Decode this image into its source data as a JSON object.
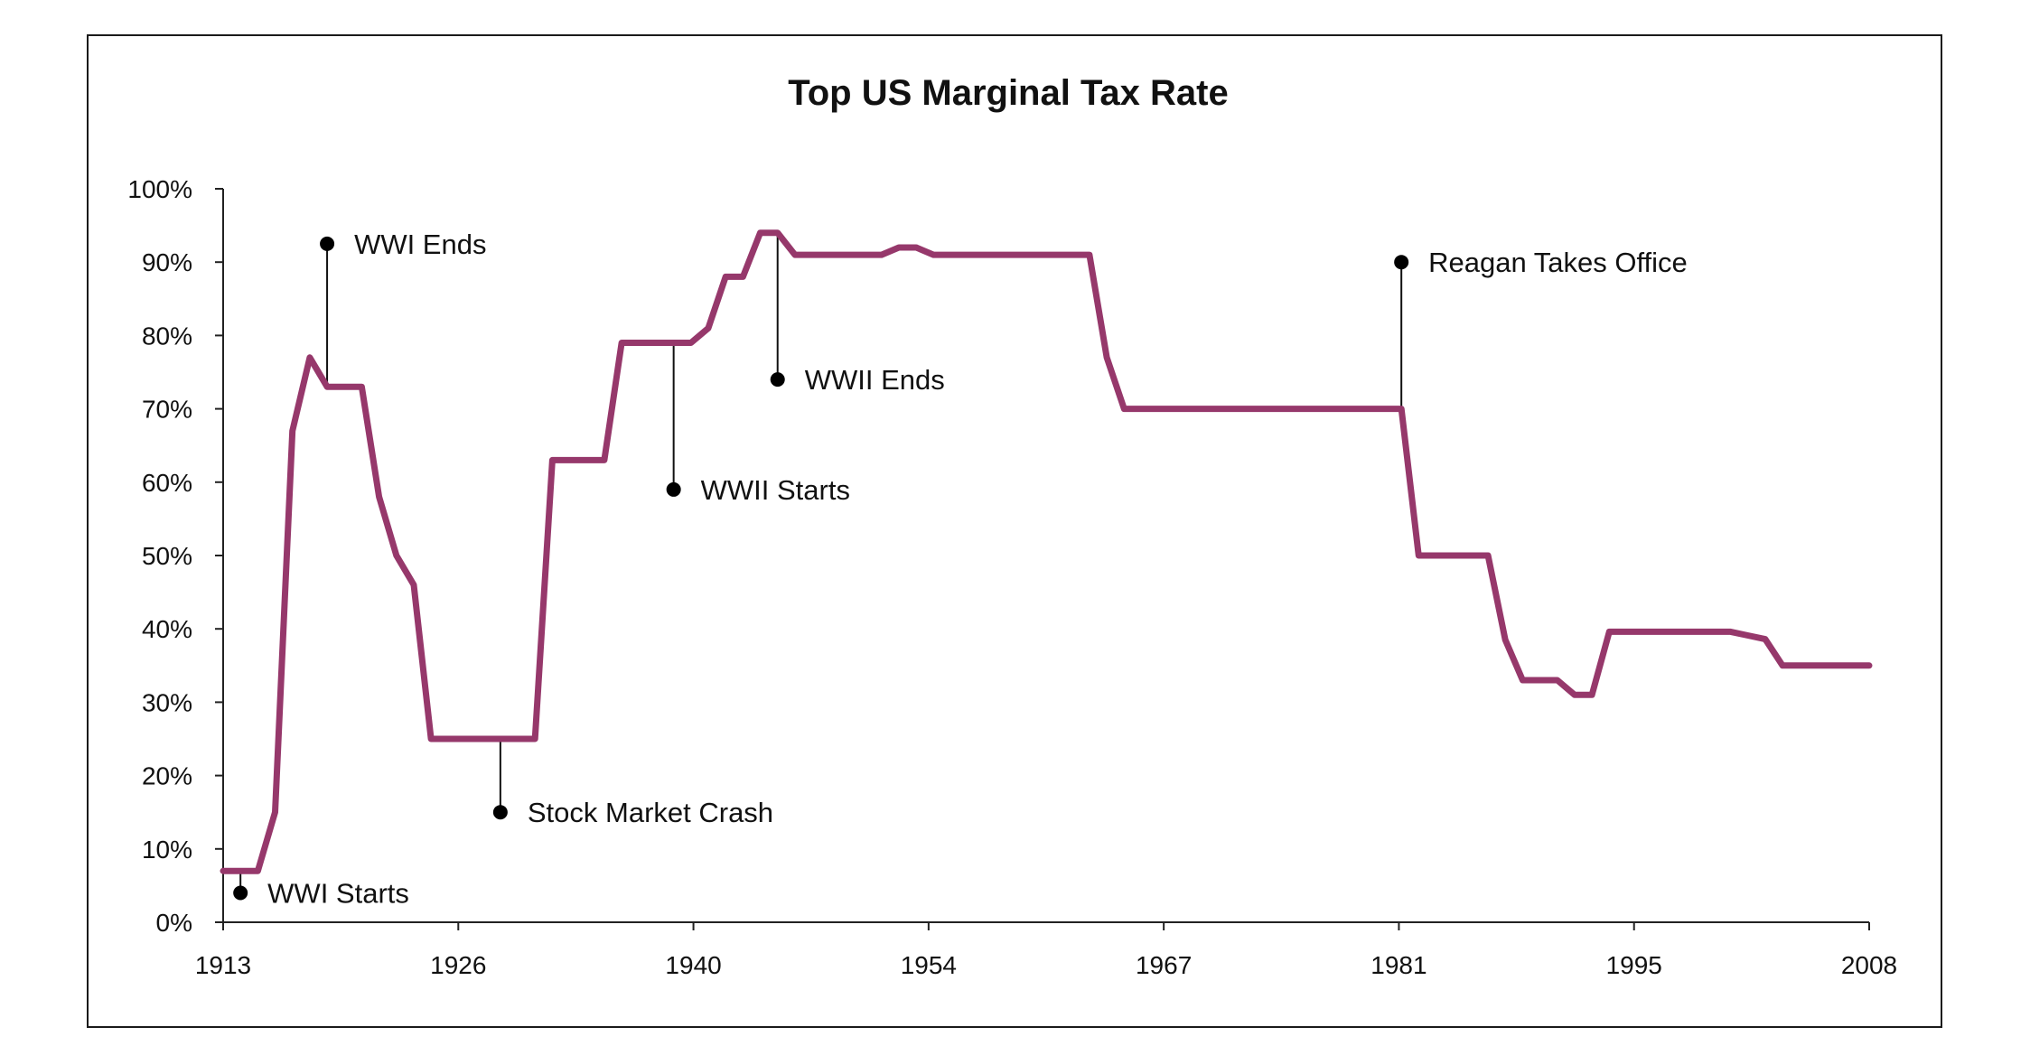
{
  "chart_data": {
    "type": "line",
    "title": "Top US Marginal Tax Rate",
    "xlabel": "",
    "ylabel": "",
    "x_ticks": [
      "1913",
      "1926",
      "1940",
      "1954",
      "1967",
      "1981",
      "1995",
      "2008"
    ],
    "y_ticks": [
      "0%",
      "10%",
      "20%",
      "30%",
      "40%",
      "50%",
      "60%",
      "70%",
      "80%",
      "90%",
      "100%"
    ],
    "xlim": [
      1913,
      2008
    ],
    "ylim": [
      0,
      100
    ],
    "grid": false,
    "legend": "none",
    "series": [
      {
        "color": "#96386b",
        "points": [
          [
            1913,
            7
          ],
          [
            1915,
            7
          ],
          [
            1916,
            15
          ],
          [
            1917,
            67
          ],
          [
            1918,
            77
          ],
          [
            1919,
            73
          ],
          [
            1921,
            73
          ],
          [
            1922,
            58
          ],
          [
            1923,
            50
          ],
          [
            1924,
            46
          ],
          [
            1925,
            25
          ],
          [
            1931,
            25
          ],
          [
            1932,
            63
          ],
          [
            1935,
            63
          ],
          [
            1936,
            79
          ],
          [
            1940,
            79
          ],
          [
            1941,
            81
          ],
          [
            1942,
            88
          ],
          [
            1943,
            88
          ],
          [
            1944,
            94
          ],
          [
            1945,
            94
          ],
          [
            1946,
            91
          ],
          [
            1951,
            91
          ],
          [
            1952,
            92
          ],
          [
            1953,
            92
          ],
          [
            1954,
            91
          ],
          [
            1963,
            91
          ],
          [
            1964,
            77
          ],
          [
            1965,
            70
          ],
          [
            1981,
            70
          ],
          [
            1982,
            50
          ],
          [
            1986,
            50
          ],
          [
            1987,
            38.5
          ],
          [
            1988,
            33
          ],
          [
            1990,
            33
          ],
          [
            1991,
            31
          ],
          [
            1992,
            31
          ],
          [
            1993,
            39.6
          ],
          [
            2000,
            39.6
          ],
          [
            2001,
            39.1
          ],
          [
            2002,
            38.6
          ],
          [
            2003,
            35
          ],
          [
            2008,
            35
          ]
        ]
      }
    ],
    "annotations": [
      {
        "label": "WWI Starts",
        "x": 1914,
        "line_from": 7,
        "marker": 4
      },
      {
        "label": "WWI Ends",
        "x": 1919,
        "line_from": 73,
        "marker": 92.5
      },
      {
        "label": "Stock Market Crash",
        "x": 1929,
        "line_from": 25,
        "marker": 15
      },
      {
        "label": "WWII Starts",
        "x": 1939,
        "line_from": 79,
        "marker": 59
      },
      {
        "label": "WWII Ends",
        "x": 1945,
        "line_from": 94,
        "marker": 74
      },
      {
        "label": "Reagan Takes Office",
        "x": 1981,
        "line_from": 70,
        "marker": 90
      }
    ]
  }
}
